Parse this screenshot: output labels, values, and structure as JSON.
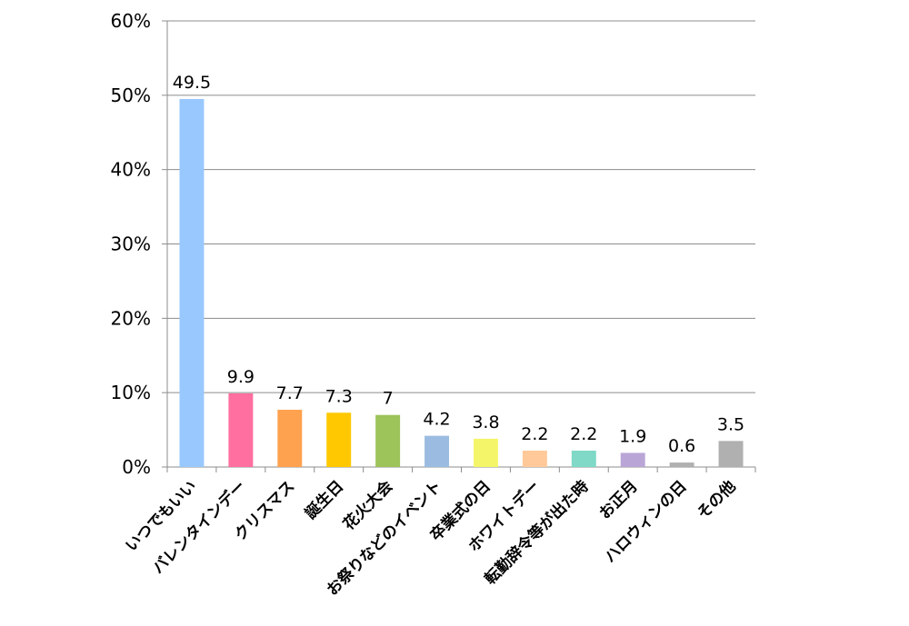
{
  "chart_data": {
    "type": "bar",
    "categories": [
      "いつでもいい",
      "バレンタインデー",
      "クリスマス",
      "誕生日",
      "花火大会",
      "お祭りなどのイベント",
      "卒業式の日",
      "ホワイトデー",
      "転勤辞令等が出た時",
      "お正月",
      "ハロウィンの日",
      "その他"
    ],
    "values": [
      49.5,
      9.9,
      7.7,
      7.3,
      7,
      4.2,
      3.8,
      2.2,
      2.2,
      1.9,
      0.6,
      3.5
    ],
    "data_labels": [
      "49.5",
      "9.9",
      "7.7",
      "7.3",
      "7",
      "4.2",
      "3.8",
      "2.2",
      "2.2",
      "1.9",
      "0.6",
      "3.5"
    ],
    "colors": [
      "#99c8ff",
      "#ff6f9f",
      "#ffa250",
      "#ffc800",
      "#9cc45a",
      "#9bbce0",
      "#f5f56a",
      "#ffc99a",
      "#7fd9c6",
      "#b9a6d6",
      "#b0b0b0",
      "#b0b0b0"
    ],
    "yticks": [
      "0%",
      "10%",
      "20%",
      "30%",
      "40%",
      "50%",
      "60%"
    ],
    "ylim": [
      0,
      60
    ],
    "grid": true,
    "legend": "none"
  }
}
